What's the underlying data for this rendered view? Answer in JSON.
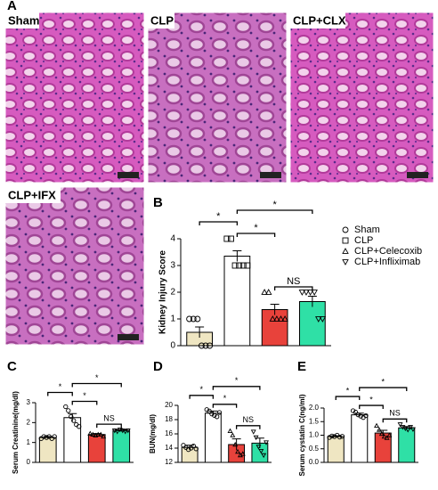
{
  "panel_a": {
    "panel": "A",
    "images": [
      {
        "label": "Sham"
      },
      {
        "label": "CLP"
      },
      {
        "label": "CLP+CLX"
      },
      {
        "label": "CLP+IFX"
      }
    ]
  },
  "chart_data": [
    {
      "type": "bar",
      "panel": "B",
      "ylabel": "Kidney Injury Score",
      "ylim": [
        0,
        4
      ],
      "yticks": [
        0,
        1,
        2,
        3,
        4
      ],
      "values": [
        0.5,
        3.35,
        1.35,
        1.65
      ],
      "errors": [
        0.2,
        0.2,
        0.2,
        0.2
      ],
      "points": [
        [
          1,
          1,
          1,
          0,
          0,
          0
        ],
        [
          4,
          4,
          3,
          3,
          3,
          3
        ],
        [
          2,
          2,
          1,
          1,
          1,
          1
        ],
        [
          2,
          2,
          2,
          2,
          1,
          1
        ]
      ],
      "colors": [
        "#efe6c2",
        "#ffffff",
        "#e8423b",
        "#2fe0a6"
      ],
      "markers": [
        "circle",
        "square",
        "triangle-up",
        "triangle-down"
      ],
      "legend": [
        "Sham",
        "CLP",
        "CLP+Celecoxib",
        "CLP+Infliximab"
      ],
      "annotations": [
        {
          "text": "*",
          "from": 1,
          "to": 2
        },
        {
          "text": "NS",
          "from": 2,
          "to": 3
        },
        {
          "text": "*",
          "from": 0,
          "to": 1
        },
        {
          "text": "*",
          "from": 1,
          "to": 3
        }
      ]
    },
    {
      "type": "bar",
      "panel": "C",
      "ylabel": "Serum Creatinine(mg/dl)",
      "ylim": [
        0,
        3
      ],
      "yticks": [
        0,
        1,
        2,
        3
      ],
      "values": [
        1.25,
        2.25,
        1.4,
        1.6
      ],
      "errors": [
        0.05,
        0.2,
        0.05,
        0.05
      ],
      "points": [
        [
          1.2,
          1.3,
          1.25,
          1.3,
          1.2,
          1.3
        ],
        [
          2.8,
          2.6,
          2.3,
          2.1,
          1.9,
          1.8
        ],
        [
          1.45,
          1.4,
          1.35,
          1.4,
          1.4,
          1.3
        ],
        [
          1.6,
          1.55,
          1.65,
          1.6,
          1.55,
          1.6
        ]
      ],
      "colors": [
        "#efe6c2",
        "#ffffff",
        "#e8423b",
        "#2fe0a6"
      ],
      "markers": [
        "circle",
        "circle",
        "triangle-up",
        "triangle-down"
      ],
      "annotations": [
        {
          "text": "*",
          "from": 1,
          "to": 2
        },
        {
          "text": "NS",
          "from": 2,
          "to": 3
        },
        {
          "text": "*",
          "from": 0,
          "to": 1
        },
        {
          "text": "*",
          "from": 1,
          "to": 3
        }
      ]
    },
    {
      "type": "bar",
      "panel": "D",
      "ylabel": "BUN(mg/dl)",
      "ylim": [
        12,
        20
      ],
      "yticks": [
        12,
        14,
        16,
        18,
        20
      ],
      "values": [
        14.1,
        18.9,
        14.5,
        14.7
      ],
      "errors": [
        0.3,
        0.3,
        0.8,
        0.7
      ],
      "points": [
        [
          14.4,
          14.1,
          13.8,
          14.0,
          14.3,
          13.9
        ],
        [
          19.4,
          19.2,
          18.8,
          18.6,
          18.4,
          19.0
        ],
        [
          16.4,
          15.8,
          14.5,
          13.5,
          13.0,
          13.2
        ],
        [
          16.3,
          15.5,
          14.2,
          13.6,
          13.0,
          14.8
        ]
      ],
      "colors": [
        "#efe6c2",
        "#ffffff",
        "#e8423b",
        "#2fe0a6"
      ],
      "markers": [
        "circle",
        "circle",
        "triangle-up",
        "triangle-down"
      ],
      "annotations": [
        {
          "text": "*",
          "from": 1,
          "to": 2
        },
        {
          "text": "NS",
          "from": 2,
          "to": 3
        },
        {
          "text": "*",
          "from": 0,
          "to": 1
        },
        {
          "text": "*",
          "from": 1,
          "to": 3
        }
      ]
    },
    {
      "type": "bar",
      "panel": "E",
      "ylabel": "Serum cystatin C(ng/ml)",
      "ylim": [
        0,
        2
      ],
      "yticks": [
        {
          "value": 0,
          "label": "0.0"
        },
        0.5,
        {
          "value": 1,
          "label": "1.0"
        },
        1.5,
        {
          "value": 2,
          "label": "2.0"
        }
      ],
      "values": [
        0.95,
        1.75,
        1.08,
        1.27
      ],
      "errors": [
        0.03,
        0.06,
        0.1,
        0.05
      ],
      "points": [
        [
          0.92,
          0.97,
          0.95,
          1.0,
          0.93,
          0.96
        ],
        [
          1.9,
          1.85,
          1.75,
          1.7,
          1.65,
          1.72
        ],
        [
          1.35,
          1.2,
          1.05,
          0.95,
          0.9,
          1.0
        ],
        [
          1.4,
          1.3,
          1.25,
          1.2,
          1.3,
          1.22
        ]
      ],
      "colors": [
        "#efe6c2",
        "#ffffff",
        "#e8423b",
        "#2fe0a6"
      ],
      "markers": [
        "circle",
        "circle",
        "triangle-up",
        "triangle-down"
      ],
      "annotations": [
        {
          "text": "*",
          "from": 1,
          "to": 2
        },
        {
          "text": "NS",
          "from": 2,
          "to": 3
        },
        {
          "text": "*",
          "from": 0,
          "to": 1
        },
        {
          "text": "*",
          "from": 1,
          "to": 3
        }
      ]
    }
  ]
}
